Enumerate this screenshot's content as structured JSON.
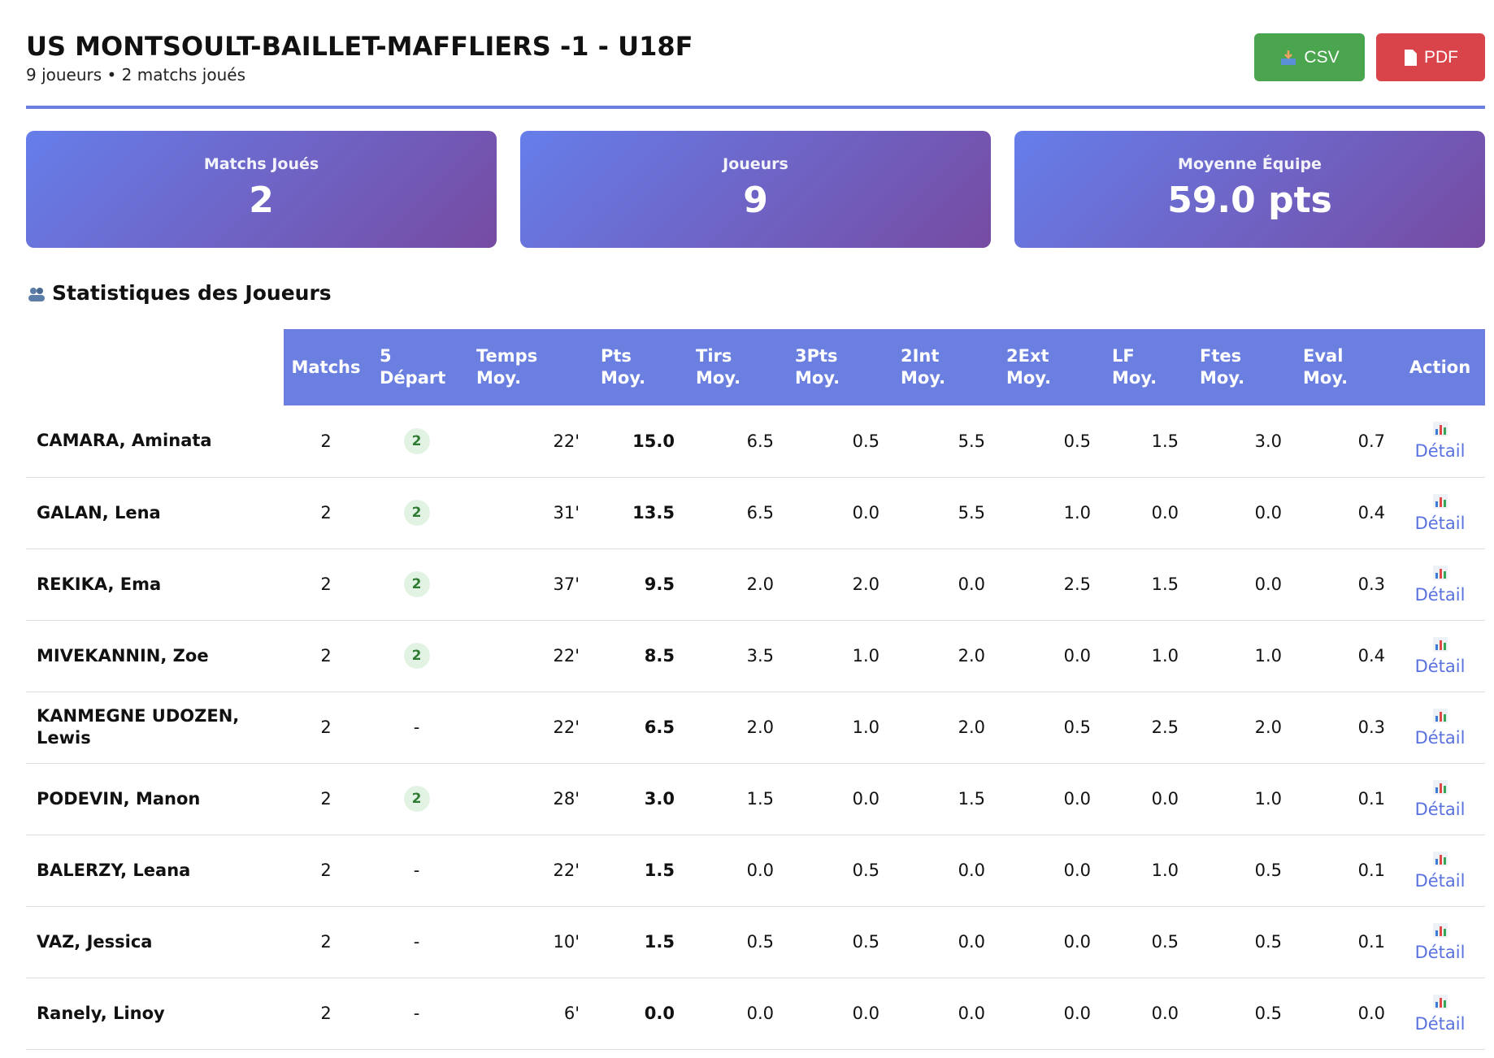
{
  "header": {
    "title": "US MONTSOULT-BAILLET-MAFFLIERS -1 - U18F",
    "subtitle": "9 joueurs • 2 matchs joués"
  },
  "buttons": {
    "csv": "CSV",
    "pdf": "PDF"
  },
  "cards": [
    {
      "label": "Matchs Joués",
      "value": "2"
    },
    {
      "label": "Joueurs",
      "value": "9"
    },
    {
      "label": "Moyenne Équipe",
      "value": "59.0 pts"
    }
  ],
  "section_title": "Statistiques des Joueurs",
  "table": {
    "columns": [
      "",
      "Matchs",
      "5 Départ",
      "Temps Moy.",
      "Pts Moy.",
      "Tirs Moy.",
      "3Pts Moy.",
      "2Int Moy.",
      "2Ext Moy.",
      "LF Moy.",
      "Ftes Moy.",
      "Eval Moy.",
      "Action"
    ],
    "rows": [
      [
        "CAMARA, Aminata",
        "2",
        "2",
        "22'",
        "15.0",
        "6.5",
        "0.5",
        "5.5",
        "0.5",
        "1.5",
        "3.0",
        "0.7",
        "Détail"
      ],
      [
        "GALAN, Lena",
        "2",
        "2",
        "31'",
        "13.5",
        "6.5",
        "0.0",
        "5.5",
        "1.0",
        "0.0",
        "0.0",
        "0.4",
        "Détail"
      ],
      [
        "REKIKA, Ema",
        "2",
        "2",
        "37'",
        "9.5",
        "2.0",
        "2.0",
        "0.0",
        "2.5",
        "1.5",
        "0.0",
        "0.3",
        "Détail"
      ],
      [
        "MIVEKANNIN, Zoe",
        "2",
        "2",
        "22'",
        "8.5",
        "3.5",
        "1.0",
        "2.0",
        "0.0",
        "1.0",
        "1.0",
        "0.4",
        "Détail"
      ],
      [
        "KANMEGNE UDOZEN, Lewis",
        "2",
        "-",
        "22'",
        "6.5",
        "2.0",
        "1.0",
        "2.0",
        "0.5",
        "2.5",
        "2.0",
        "0.3",
        "Détail"
      ],
      [
        "PODEVIN, Manon",
        "2",
        "2",
        "28'",
        "3.0",
        "1.5",
        "0.0",
        "1.5",
        "0.0",
        "0.0",
        "1.0",
        "0.1",
        "Détail"
      ],
      [
        "BALERZY, Leana",
        "2",
        "-",
        "22'",
        "1.5",
        "0.0",
        "0.5",
        "0.0",
        "0.0",
        "1.0",
        "0.5",
        "0.1",
        "Détail"
      ],
      [
        "VAZ, Jessica",
        "2",
        "-",
        "10'",
        "1.5",
        "0.5",
        "0.5",
        "0.0",
        "0.0",
        "0.5",
        "0.5",
        "0.1",
        "Détail"
      ],
      [
        "Ranely, Linoy",
        "2",
        "-",
        "6'",
        "0.0",
        "0.0",
        "0.0",
        "0.0",
        "0.0",
        "0.0",
        "0.5",
        "0.0",
        "Détail"
      ]
    ]
  }
}
